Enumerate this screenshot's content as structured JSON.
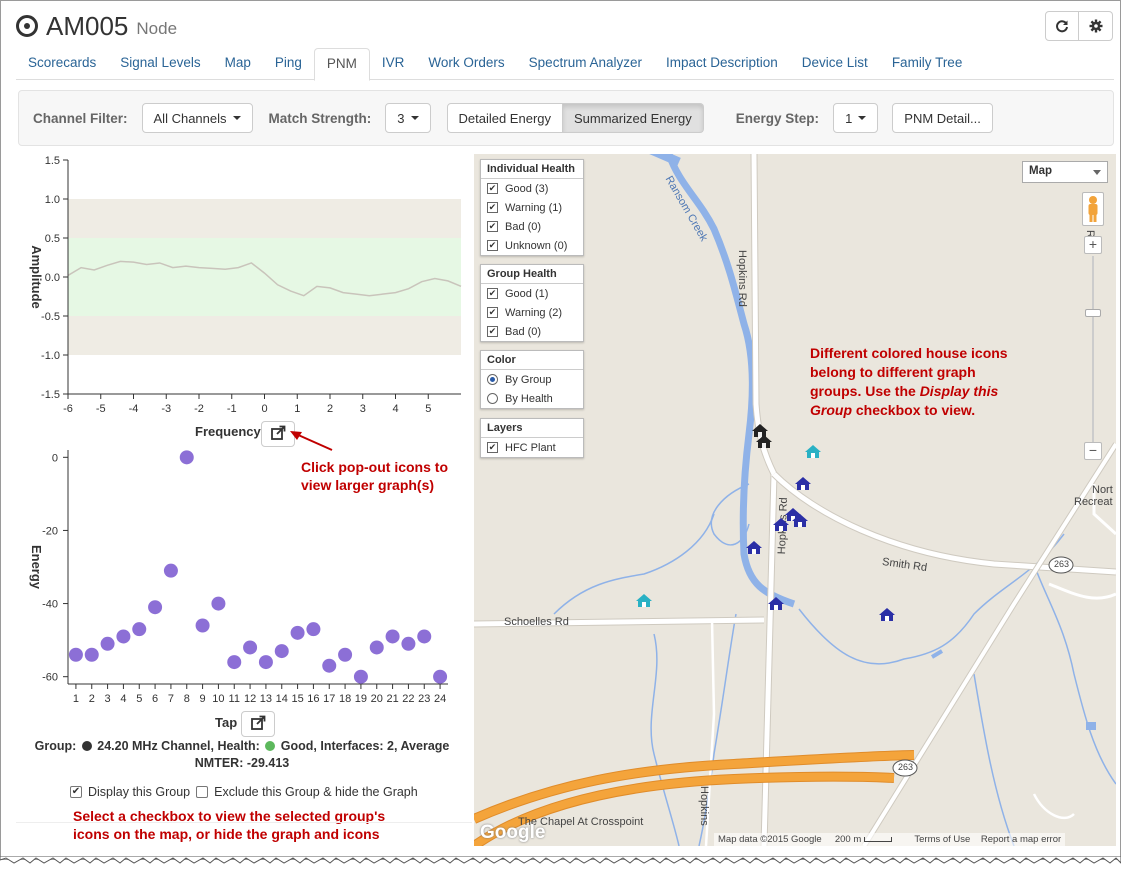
{
  "header": {
    "title": "AM005",
    "subtitle": "Node",
    "refresh_icon": "refresh-icon",
    "settings_icon": "gear-icon"
  },
  "tabs": [
    {
      "label": "Scorecards"
    },
    {
      "label": "Signal Levels"
    },
    {
      "label": "Map"
    },
    {
      "label": "Ping"
    },
    {
      "label": "PNM",
      "active": true
    },
    {
      "label": "IVR"
    },
    {
      "label": "Work Orders"
    },
    {
      "label": "Spectrum Analyzer"
    },
    {
      "label": "Impact Description"
    },
    {
      "label": "Device List"
    },
    {
      "label": "Family Tree"
    }
  ],
  "toolbar": {
    "channel_filter_label": "Channel Filter:",
    "channel_filter_value": "All Channels",
    "match_strength_label": "Match Strength:",
    "match_strength_value": "3",
    "detailed_energy": "Detailed Energy",
    "summarized_energy": "Summarized Energy",
    "energy_step_label": "Energy Step:",
    "energy_step_value": "1",
    "pnm_detail": "PNM Detail..."
  },
  "chart_data": [
    {
      "type": "line",
      "xlabel": "Frequency",
      "ylabel": "Amplitude",
      "xlim": [
        -6,
        6
      ],
      "ylim": [
        -1.5,
        1.5
      ],
      "x_ticks": [
        -6,
        -5,
        -4,
        -3,
        -2,
        -1,
        0,
        1,
        2,
        3,
        4,
        5
      ],
      "y_ticks": [
        "1.5",
        "1.0",
        "0.5",
        "0.0",
        "-0.5",
        "-1.0",
        "-1.5"
      ],
      "bands": [
        {
          "from": -1.0,
          "to": 1.0,
          "color": "#efece4"
        },
        {
          "from": -0.5,
          "to": 0.5,
          "color": "#e6f8e4"
        }
      ],
      "x": [
        -6,
        -5.6,
        -5.2,
        -4.8,
        -4.4,
        -4.0,
        -3.6,
        -3.2,
        -2.8,
        -2.4,
        -2.0,
        -1.6,
        -1.2,
        -0.8,
        -0.4,
        0.0,
        0.4,
        0.8,
        1.2,
        1.6,
        2.0,
        2.4,
        2.8,
        3.2,
        3.6,
        4.0,
        4.4,
        4.8,
        5.2,
        5.6,
        6.0
      ],
      "y": [
        0.02,
        0.12,
        0.09,
        0.15,
        0.2,
        0.19,
        0.16,
        0.18,
        0.12,
        0.14,
        0.12,
        0.11,
        0.1,
        0.12,
        0.18,
        0.05,
        -0.1,
        -0.18,
        -0.24,
        -0.12,
        -0.14,
        -0.2,
        -0.22,
        -0.24,
        -0.22,
        -0.2,
        -0.15,
        -0.06,
        -0.02,
        -0.05,
        -0.12
      ],
      "line_color": "#c9c4bb"
    },
    {
      "type": "scatter",
      "xlabel": "Tap",
      "ylabel": "Energy",
      "xlim": [
        0.5,
        24.5
      ],
      "ylim": [
        -62,
        2
      ],
      "y_ticks": [
        0,
        -20,
        -40,
        -60
      ],
      "x": [
        1,
        2,
        3,
        4,
        5,
        6,
        7,
        8,
        9,
        10,
        11,
        12,
        13,
        14,
        15,
        16,
        17,
        18,
        19,
        20,
        21,
        22,
        23,
        24
      ],
      "y": [
        -54,
        -54,
        -51,
        -49,
        -47,
        -41,
        -31,
        0,
        -46,
        -40,
        -56,
        -52,
        -56,
        -53,
        -48,
        -47,
        -57,
        -54,
        -60,
        -52,
        -49,
        -51,
        -49,
        -60
      ],
      "point_color": "#8c6fd6"
    }
  ],
  "group_info": {
    "group_label": "Group:",
    "channel": "24.20 MHz Channel, Health:",
    "health": "Good, Interfaces: 2, Average",
    "nmter": "NMTER: -29.413",
    "group_dot_color": "#333333",
    "health_dot_color": "#5cb85c"
  },
  "display_group_label": "Display this Group",
  "exclude_group_label": "Exclude this Group & hide the Graph",
  "annotations": {
    "popout_1": "Click pop-out icons to",
    "popout_2": "view larger graph(s)",
    "checkbox_1": "Select a checkbox to view the selected group's",
    "checkbox_2": "icons on the map, or hide the graph and icons",
    "map_1": "Different colored house icons",
    "map_2": "belong to different graph",
    "map_3a": "groups. Use the ",
    "map_3b": "Display this",
    "map_4a": "Group",
    "map_4b": " checkbox to view."
  },
  "map": {
    "map_type": "Map",
    "individual_health": {
      "title": "Individual Health",
      "items": [
        {
          "label": "Good (3)",
          "checked": true
        },
        {
          "label": "Warning (1)",
          "checked": true
        },
        {
          "label": "Bad (0)",
          "checked": true
        },
        {
          "label": "Unknown (0)",
          "checked": true
        }
      ]
    },
    "group_health": {
      "title": "Group Health",
      "items": [
        {
          "label": "Good (1)",
          "checked": true
        },
        {
          "label": "Warning (2)",
          "checked": true
        },
        {
          "label": "Bad (0)",
          "checked": true
        }
      ]
    },
    "color": {
      "title": "Color",
      "items": [
        {
          "label": "By Group",
          "selected": true
        },
        {
          "label": "By Health",
          "selected": false
        }
      ]
    },
    "layers": {
      "title": "Layers",
      "items": [
        {
          "label": "HFC Plant",
          "checked": true
        }
      ]
    },
    "labels": {
      "ransom_creek": "Ransom Creek",
      "hopkins_rd_1": "Hopkins Rd",
      "hopkins_rd_2": "Hopkins Rd",
      "hopkins_rd_3": "Hopkins",
      "smith_rd": "Smith Rd",
      "schoelles_rd": "Schoelles Rd",
      "route_263a": "263",
      "route_263b": "263",
      "chapel": "The Chapel At Crosspoint",
      "north_rec_1": "Nort",
      "north_rec_2": "Recreat",
      "ridge_rd": "Rd"
    },
    "footer": {
      "google": "Google",
      "data": "Map data ©2015 Google",
      "scale": "200 m",
      "terms": "Terms of Use",
      "report": "Report a map error"
    },
    "colors": {
      "house_blue": "#2b2fa6",
      "house_teal": "#29b1c4",
      "house_black": "#222222",
      "creek": "#8fb2e8",
      "highway": "#f4a43b",
      "road": "#ffffff"
    }
  }
}
